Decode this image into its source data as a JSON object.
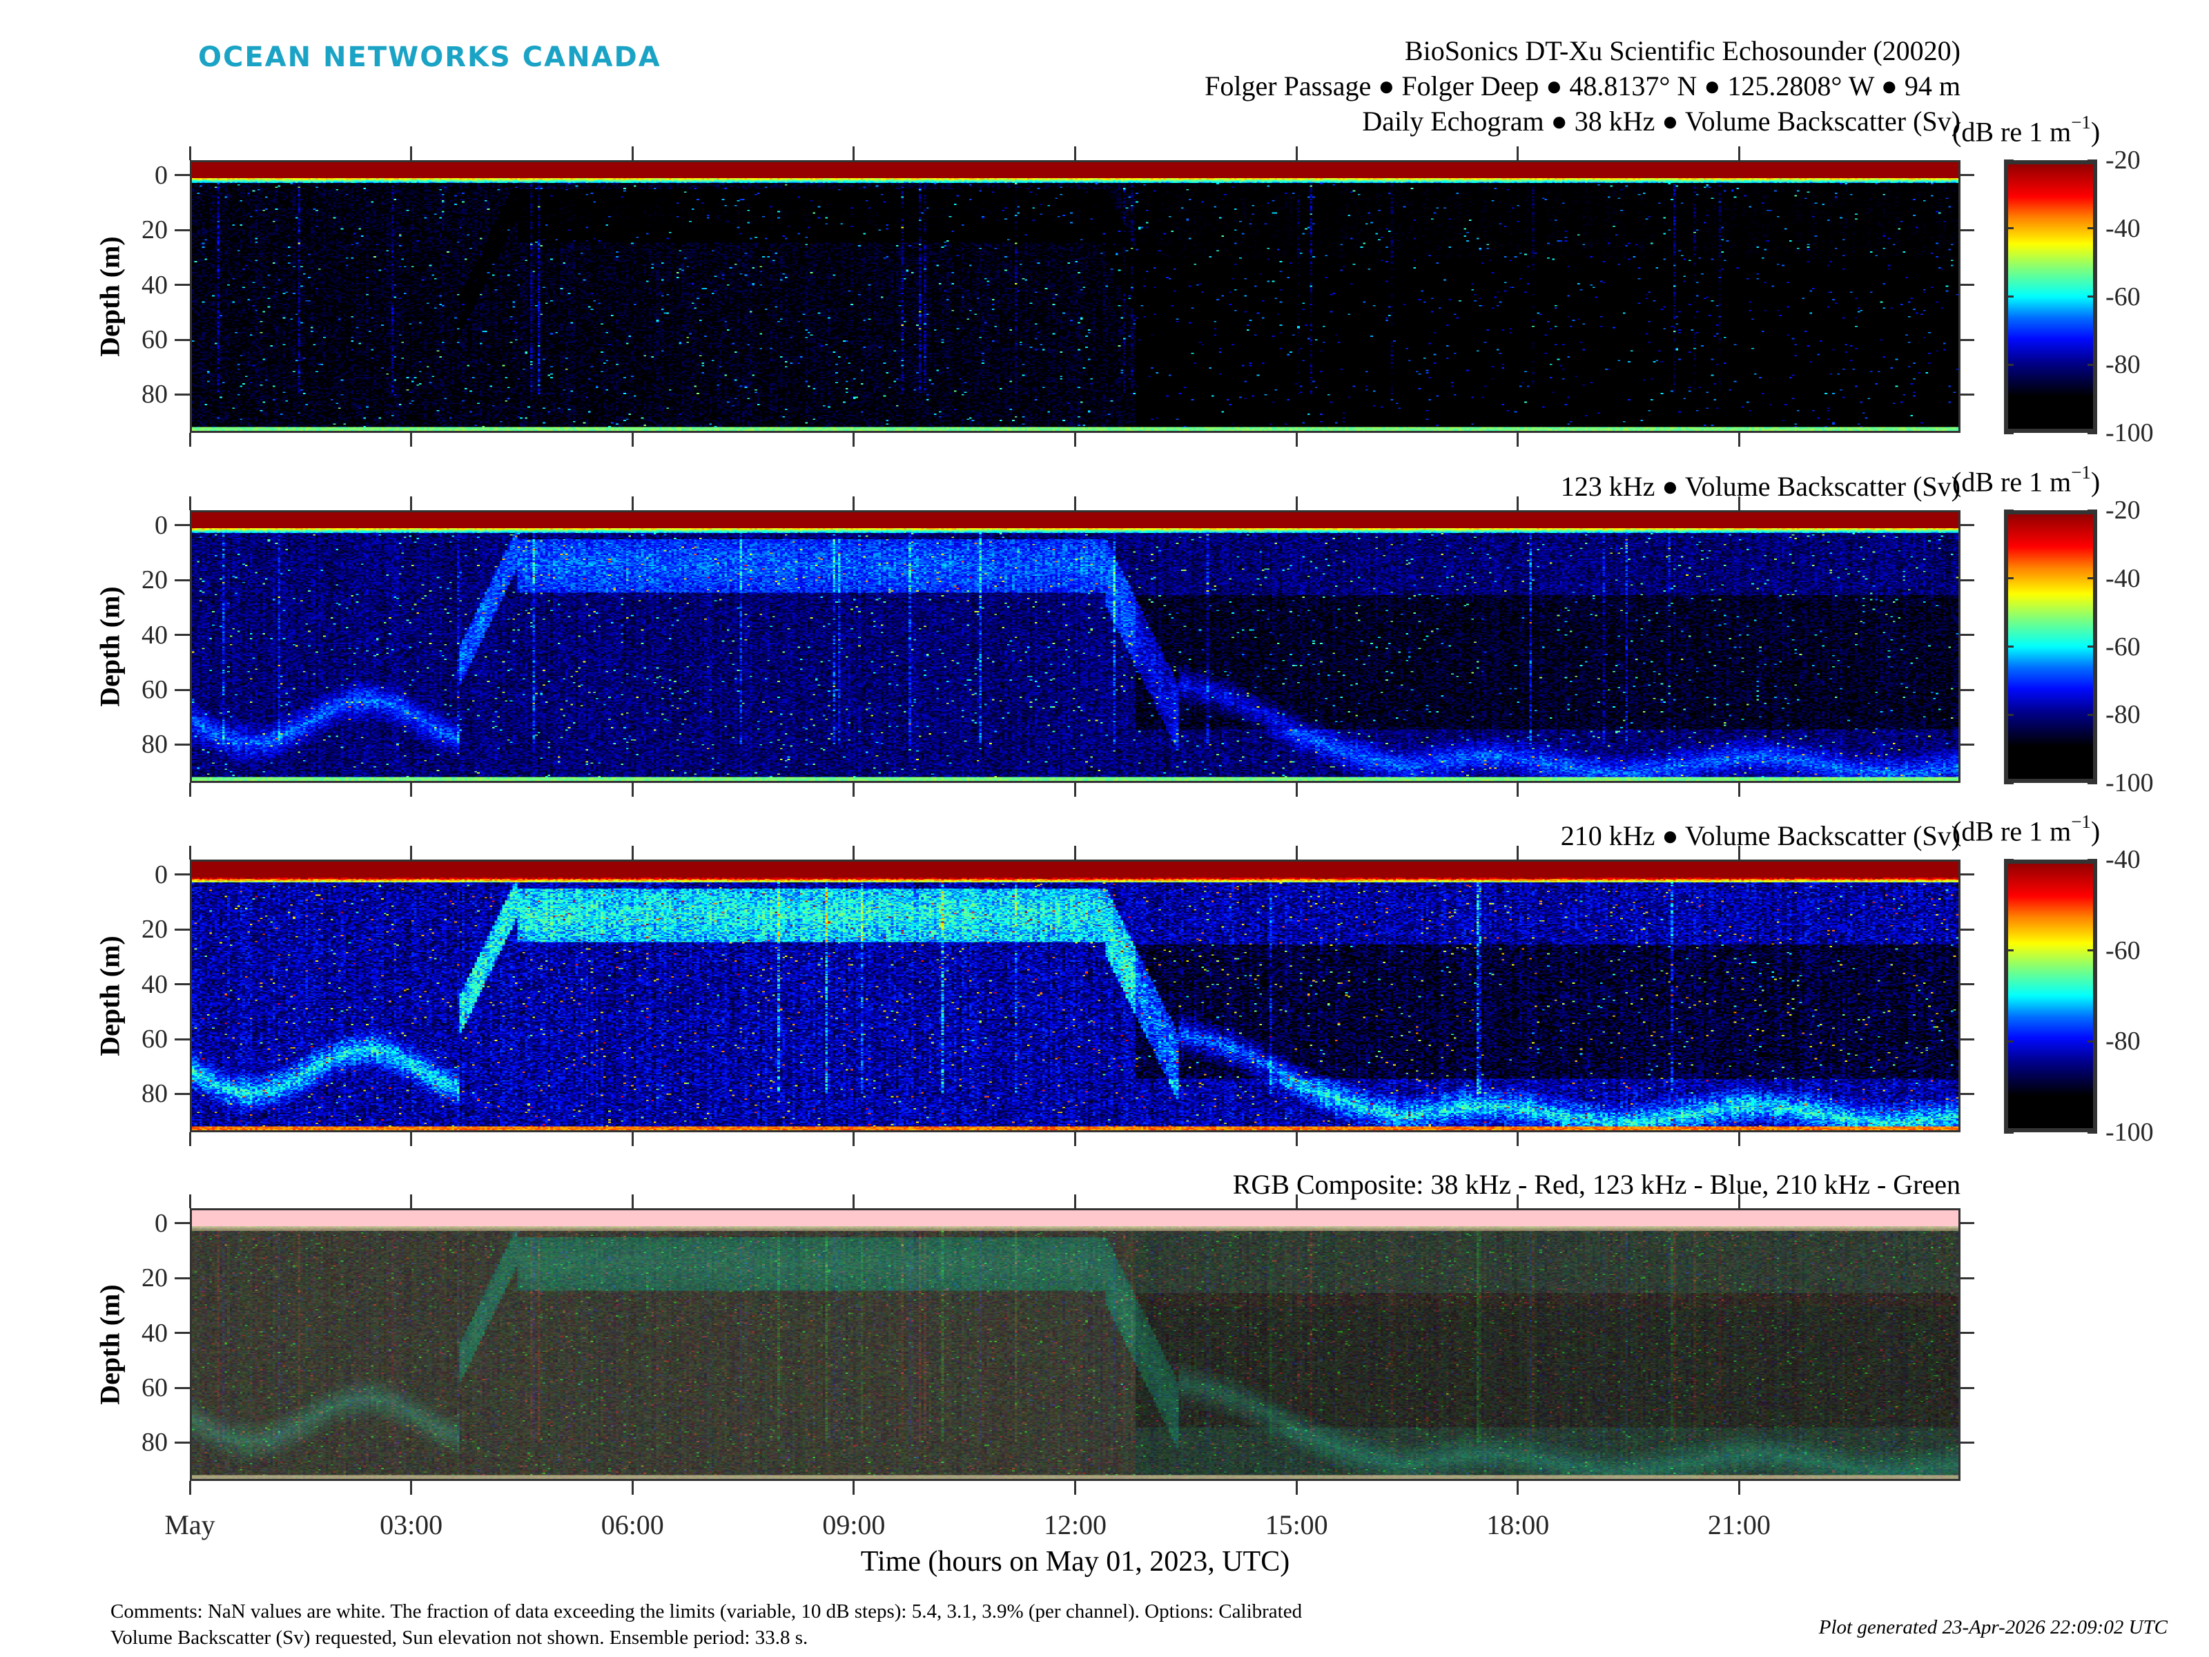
{
  "logo": "OCEAN NETWORKS CANADA",
  "header": {
    "line1": "BioSonics DT-Xu Scientific Echosounder (20020)",
    "line2": "Folger Passage ● Folger Deep ● 48.8137° N ● 125.2808° W ● 94 m",
    "line3": "Daily Echogram ● 38 kHz ● Volume Backscatter (Sv)"
  },
  "unit": {
    "base": "(dB re 1 m",
    "exp": "−1",
    "close": ")"
  },
  "panels": [
    {
      "key": "38khz",
      "heading": "",
      "colorbar_ticks": [
        "-20",
        "-40",
        "-60",
        "-80",
        "-100"
      ],
      "clim": [
        -100,
        -20
      ]
    },
    {
      "key": "123khz",
      "heading": "123 kHz ● Volume Backscatter (Sv)",
      "colorbar_ticks": [
        "-20",
        "-40",
        "-60",
        "-80",
        "-100"
      ],
      "clim": [
        -100,
        -20
      ]
    },
    {
      "key": "210khz",
      "heading": "210 kHz ● Volume Backscatter (Sv)",
      "colorbar_ticks": [
        "-40",
        "-60",
        "-80",
        "-100"
      ],
      "clim": [
        -100,
        -40
      ]
    },
    {
      "key": "rgb",
      "heading": "RGB Composite: 38 kHz - Red, 123 kHz - Blue, 210 kHz - Green",
      "colorbar_ticks": [],
      "clim": null
    }
  ],
  "y_axis": {
    "label": "Depth (m)",
    "ticks": [
      "0",
      "20",
      "40",
      "60",
      "80"
    ]
  },
  "x_axis": {
    "label": "Time (hours on May 01, 2023, UTC)",
    "ticks": [
      "May",
      "03:00",
      "06:00",
      "09:00",
      "12:00",
      "15:00",
      "18:00",
      "21:00"
    ]
  },
  "footer": {
    "comments_line1": "Comments: NaN values are white. The fraction of data exceeding the limits (variable, 10 dB steps): 5.4, 3.1, 3.9% (per channel). Options: Calibrated",
    "comments_line2": "Volume Backscatter (Sv) requested, Sun elevation not shown. Ensemble period: 33.8 s.",
    "generated": "Plot generated 23-Apr-2026 22:09:02 UTC"
  },
  "chart_data": {
    "type": "heatmap",
    "title": "BioSonics DT-Xu Scientific Echosounder (20020) Daily Echogram",
    "xlabel": "Time (hours on May 01, 2023, UTC)",
    "ylabel": "Depth (m)",
    "xlim_hours": [
      0,
      24
    ],
    "ylim_depth_m": [
      -5.5,
      94
    ],
    "y_reversed": true,
    "x_ticks_hours": [
      0,
      3,
      6,
      9,
      12,
      15,
      18,
      21
    ],
    "y_ticks_m": [
      0,
      20,
      40,
      60,
      80
    ],
    "colorbar_label": "Volume Backscatter (Sv) (dB re 1 m^-1)",
    "colormap": "jet",
    "series": [
      {
        "name": "38 kHz",
        "clim": [
          -100,
          -20
        ]
      },
      {
        "name": "123 kHz",
        "clim": [
          -100,
          -20
        ]
      },
      {
        "name": "210 kHz",
        "clim": [
          -100,
          -40
        ]
      },
      {
        "name": "RGB Composite",
        "channels": {
          "red": "38 kHz",
          "blue": "123 kHz",
          "green": "210 kHz"
        }
      }
    ],
    "features": {
      "day_layer_hours": [
        4.3,
        12.6
      ],
      "day_layer_depth_m": [
        5,
        25
      ],
      "bottom_depth_m": 93
    },
    "colors": {
      "logo": "#1ba3c6",
      "axes": "#333333"
    }
  }
}
